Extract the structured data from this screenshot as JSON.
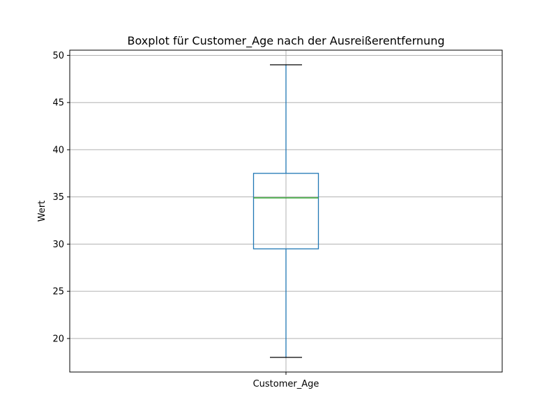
{
  "chart_data": {
    "type": "boxplot",
    "title": "Boxplot für Customer_Age nach der Ausreißerentfernung",
    "xlabel": "",
    "ylabel": "Wert",
    "categories": [
      "Customer_Age"
    ],
    "series": [
      {
        "whisker_low": 18,
        "q1": 29.5,
        "median": 34.9,
        "q3": 37.5,
        "whisker_high": 49
      }
    ],
    "ylim": [
      16.45,
      50.55
    ],
    "yticks": [
      20,
      25,
      30,
      35,
      40,
      45,
      50
    ],
    "grid": true,
    "colors": {
      "box": "#1f77b4",
      "median": "#2ca02c",
      "caps": "#000000",
      "grid": "#b0b0b0"
    }
  }
}
